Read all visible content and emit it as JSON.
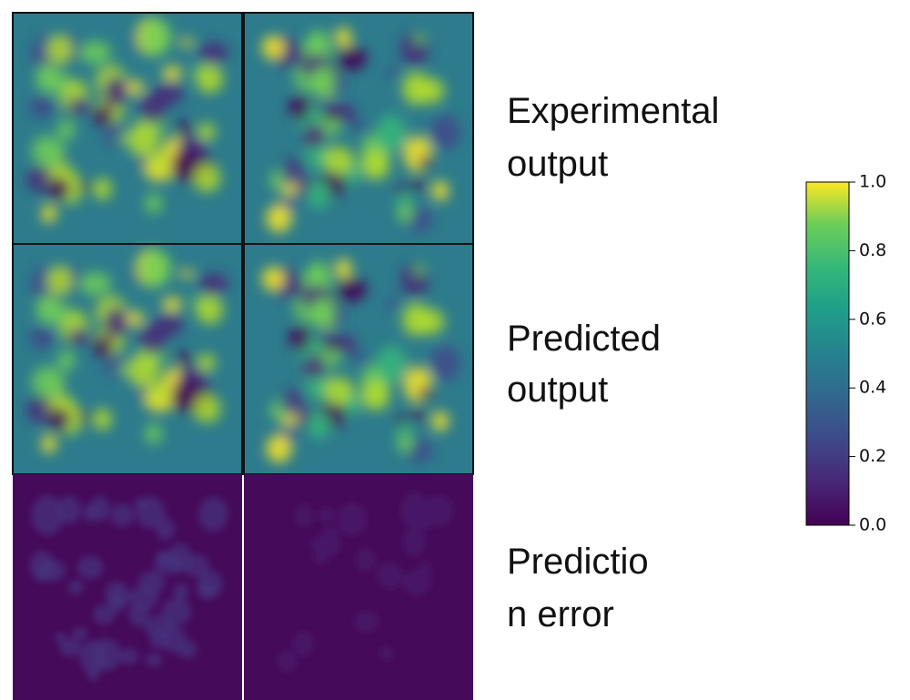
{
  "rows": [
    {
      "label": [
        "Experimental",
        "output"
      ]
    },
    {
      "label": [
        "Predicted",
        "output"
      ]
    },
    {
      "label": [
        "Predictio",
        "n error"
      ]
    }
  ],
  "colorbar": {
    "colormap": "viridis",
    "lim": [
      0.0,
      1.0
    ],
    "ticks": [
      {
        "value": 0.0,
        "label": "0.0"
      },
      {
        "value": 0.2,
        "label": "0.2"
      },
      {
        "value": 0.4,
        "label": "0.4"
      },
      {
        "value": 0.6,
        "label": "0.6"
      },
      {
        "value": 0.8,
        "label": "0.8"
      },
      {
        "value": 1.0,
        "label": "1.0"
      }
    ]
  }
}
